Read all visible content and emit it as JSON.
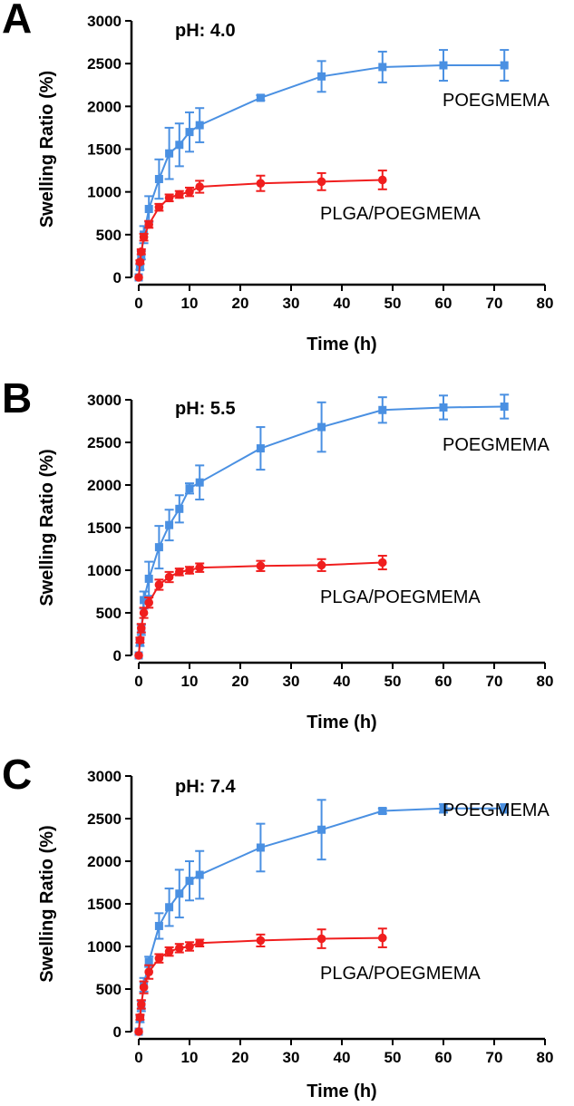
{
  "chart_data": [
    {
      "type": "line",
      "panel": "A",
      "annotation": "pH: 4.0",
      "xlabel": "Time (h)",
      "ylabel": "Swelling Ratio (%)",
      "xlim": [
        0,
        80
      ],
      "ylim": [
        0,
        3000
      ],
      "xticks": [
        0,
        10,
        20,
        30,
        40,
        50,
        60,
        70,
        80
      ],
      "yticks": [
        0,
        500,
        1000,
        1500,
        2000,
        2500,
        3000
      ],
      "series": [
        {
          "name": "POEGMEMA",
          "color": "#4a90e2",
          "marker": "square",
          "x": [
            0,
            0.25,
            0.5,
            1,
            2,
            4,
            6,
            8,
            10,
            12,
            24,
            36,
            48,
            60,
            72
          ],
          "y": [
            0,
            120,
            260,
            500,
            800,
            1150,
            1450,
            1550,
            1700,
            1780,
            2100,
            2350,
            2460,
            2480,
            2480
          ],
          "err": [
            0,
            30,
            50,
            100,
            150,
            230,
            300,
            250,
            230,
            200,
            30,
            180,
            180,
            180,
            180
          ]
        },
        {
          "name": "PLGA/POEGMEMA",
          "color": "#f01e1e",
          "marker": "circle",
          "x": [
            0,
            0.25,
            0.5,
            1,
            2,
            4,
            6,
            8,
            10,
            12,
            24,
            36,
            48
          ],
          "y": [
            0,
            180,
            300,
            470,
            620,
            820,
            930,
            970,
            1000,
            1060,
            1100,
            1120,
            1140
          ],
          "err": [
            0,
            20,
            30,
            40,
            40,
            40,
            40,
            40,
            50,
            70,
            90,
            100,
            110
          ]
        }
      ]
    },
    {
      "type": "line",
      "panel": "B",
      "annotation": "pH: 5.5",
      "xlabel": "Time (h)",
      "ylabel": "Swelling Ratio (%)",
      "xlim": [
        0,
        80
      ],
      "ylim": [
        0,
        3000
      ],
      "xticks": [
        0,
        10,
        20,
        30,
        40,
        50,
        60,
        70,
        80
      ],
      "yticks": [
        0,
        500,
        1000,
        1500,
        2000,
        2500,
        3000
      ],
      "series": [
        {
          "name": "POEGMEMA",
          "color": "#4a90e2",
          "marker": "square",
          "x": [
            0,
            0.25,
            0.5,
            1,
            2,
            4,
            6,
            8,
            10,
            12,
            24,
            36,
            48,
            60,
            72
          ],
          "y": [
            0,
            150,
            300,
            650,
            900,
            1270,
            1530,
            1720,
            1960,
            2030,
            2430,
            2680,
            2880,
            2910,
            2920
          ],
          "err": [
            0,
            40,
            60,
            100,
            200,
            250,
            180,
            160,
            60,
            200,
            250,
            290,
            150,
            140,
            140
          ]
        },
        {
          "name": "PLGA/POEGMEMA",
          "color": "#f01e1e",
          "marker": "circle",
          "x": [
            0,
            0.25,
            0.5,
            1,
            2,
            4,
            6,
            8,
            10,
            12,
            24,
            36,
            48
          ],
          "y": [
            0,
            180,
            320,
            500,
            620,
            830,
            920,
            980,
            1000,
            1030,
            1050,
            1060,
            1090
          ],
          "err": [
            0,
            30,
            50,
            60,
            60,
            60,
            60,
            40,
            40,
            50,
            60,
            70,
            80
          ]
        }
      ]
    },
    {
      "type": "line",
      "panel": "C",
      "annotation": "pH: 7.4",
      "xlabel": "Time (h)",
      "ylabel": "Swelling Ratio (%)",
      "xlim": [
        0,
        80
      ],
      "ylim": [
        0,
        3000
      ],
      "xticks": [
        0,
        10,
        20,
        30,
        40,
        50,
        60,
        70,
        80
      ],
      "yticks": [
        0,
        500,
        1000,
        1500,
        2000,
        2500,
        3000
      ],
      "series": [
        {
          "name": "POEGMEMA",
          "color": "#4a90e2",
          "marker": "square",
          "x": [
            0,
            0.25,
            0.5,
            1,
            2,
            4,
            6,
            8,
            10,
            12,
            24,
            36,
            48,
            60,
            72
          ],
          "y": [
            0,
            150,
            300,
            550,
            820,
            1240,
            1460,
            1620,
            1770,
            1840,
            2160,
            2370,
            2590,
            2620,
            2620
          ],
          "err": [
            0,
            40,
            60,
            80,
            60,
            150,
            220,
            280,
            230,
            280,
            280,
            350,
            30,
            50,
            50
          ]
        },
        {
          "name": "PLGA/POEGMEMA",
          "color": "#f01e1e",
          "marker": "circle",
          "x": [
            0,
            0.25,
            0.5,
            1,
            2,
            4,
            6,
            8,
            10,
            12,
            24,
            36,
            48
          ],
          "y": [
            0,
            170,
            320,
            520,
            700,
            860,
            940,
            980,
            1000,
            1040,
            1070,
            1090,
            1100
          ],
          "err": [
            0,
            30,
            50,
            70,
            80,
            50,
            50,
            50,
            50,
            40,
            70,
            110,
            110
          ]
        }
      ]
    }
  ]
}
